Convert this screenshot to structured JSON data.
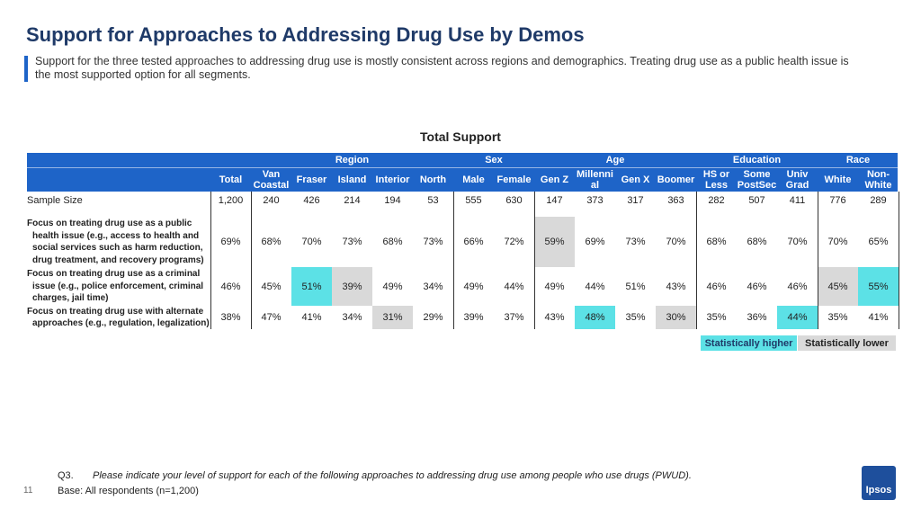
{
  "header": {
    "title": "Support for Approaches to Addressing Drug Use by Demos",
    "subtitle": "Support for the three tested approaches to addressing drug use is mostly consistent across regions and demographics. Treating drug use as a public health issue is the most supported option for all segments."
  },
  "table": {
    "title": "Total Support",
    "total_column": "Total",
    "groups": [
      {
        "label": "Region",
        "columns": [
          "Van Coastal",
          "Fraser",
          "Island",
          "Interior",
          "North"
        ]
      },
      {
        "label": "Sex",
        "columns": [
          "Male",
          "Female"
        ]
      },
      {
        "label": "Age",
        "columns": [
          "Gen Z",
          "Millennial",
          "Gen X",
          "Boomer"
        ]
      },
      {
        "label": "Education",
        "columns": [
          "HS or Less",
          "Some PostSec",
          "Univ Grad"
        ]
      },
      {
        "label": "Race",
        "columns": [
          "White",
          "Non-White"
        ]
      }
    ],
    "colors": {
      "higher": "#5ce1e6",
      "lower": "#d9d9d9",
      "header": "#1e64c8"
    },
    "sample": {
      "label": "Sample Size",
      "values": [
        "1,200",
        "240",
        "426",
        "214",
        "194",
        "53",
        "555",
        "630",
        "147",
        "373",
        "317",
        "363",
        "282",
        "507",
        "411",
        "776",
        "289"
      ]
    },
    "rows": [
      {
        "label": "Focus on treating drug use as a public health issue (e.g., access to health and social services such as harm reduction, drug treatment, and recovery programs)",
        "cells": [
          {
            "value": "69%"
          },
          {
            "value": "68%"
          },
          {
            "value": "70%"
          },
          {
            "value": "73%"
          },
          {
            "value": "68%"
          },
          {
            "value": "73%"
          },
          {
            "value": "66%"
          },
          {
            "value": "72%"
          },
          {
            "value": "59%",
            "sig": "lower"
          },
          {
            "value": "69%"
          },
          {
            "value": "73%"
          },
          {
            "value": "70%"
          },
          {
            "value": "68%"
          },
          {
            "value": "68%"
          },
          {
            "value": "70%"
          },
          {
            "value": "70%"
          },
          {
            "value": "65%"
          }
        ]
      },
      {
        "label": "Focus on treating drug use as a criminal issue (e.g., police enforcement, criminal charges, jail time)",
        "cells": [
          {
            "value": "46%"
          },
          {
            "value": "45%"
          },
          {
            "value": "51%",
            "sig": "higher"
          },
          {
            "value": "39%",
            "sig": "lower"
          },
          {
            "value": "49%"
          },
          {
            "value": "34%"
          },
          {
            "value": "49%"
          },
          {
            "value": "44%"
          },
          {
            "value": "49%"
          },
          {
            "value": "44%"
          },
          {
            "value": "51%"
          },
          {
            "value": "43%"
          },
          {
            "value": "46%"
          },
          {
            "value": "46%"
          },
          {
            "value": "46%"
          },
          {
            "value": "45%",
            "sig": "lower"
          },
          {
            "value": "55%",
            "sig": "higher"
          }
        ]
      },
      {
        "label": "Focus on treating drug use with alternate approaches (e.g., regulation, legalization)",
        "cells": [
          {
            "value": "38%"
          },
          {
            "value": "47%"
          },
          {
            "value": "41%"
          },
          {
            "value": "34%"
          },
          {
            "value": "31%",
            "sig": "lower"
          },
          {
            "value": "29%"
          },
          {
            "value": "39%"
          },
          {
            "value": "37%"
          },
          {
            "value": "43%"
          },
          {
            "value": "48%",
            "sig": "higher"
          },
          {
            "value": "35%"
          },
          {
            "value": "30%",
            "sig": "lower"
          },
          {
            "value": "35%"
          },
          {
            "value": "36%"
          },
          {
            "value": "44%",
            "sig": "higher"
          },
          {
            "value": "35%"
          },
          {
            "value": "41%"
          }
        ]
      }
    ],
    "legend": [
      {
        "label": "Statistically higher",
        "sig": "higher"
      },
      {
        "label": "Statistically lower",
        "sig": "lower"
      }
    ]
  },
  "footer": {
    "question_number": "Q3.",
    "question": "Please indicate your level of support for each of the following approaches to addressing drug use among people who use drugs (PWUD).",
    "base": "Base: All respondents (n=1,200)",
    "page": "11",
    "logo": "Ipsos"
  }
}
